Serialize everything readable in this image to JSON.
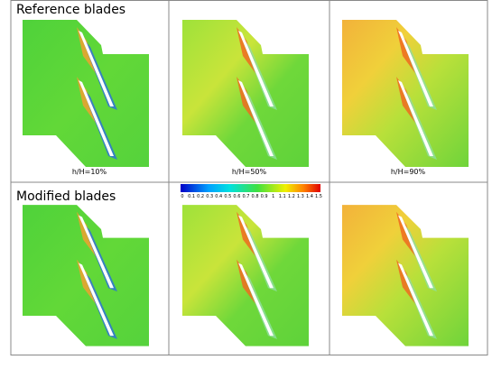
{
  "rows": [
    {
      "label": "Reference blades",
      "captions": [
        "h/H=10%",
        "h/H=50%",
        "h/H=90%"
      ]
    },
    {
      "label": "Modified blades"
    }
  ],
  "colorbar": {
    "ticks": [
      0,
      0.1,
      0.2,
      0.3,
      0.4,
      0.5,
      0.6,
      0.7,
      0.8,
      0.9,
      1,
      1.1,
      1.2,
      1.3,
      1.4,
      1.5
    ]
  }
}
